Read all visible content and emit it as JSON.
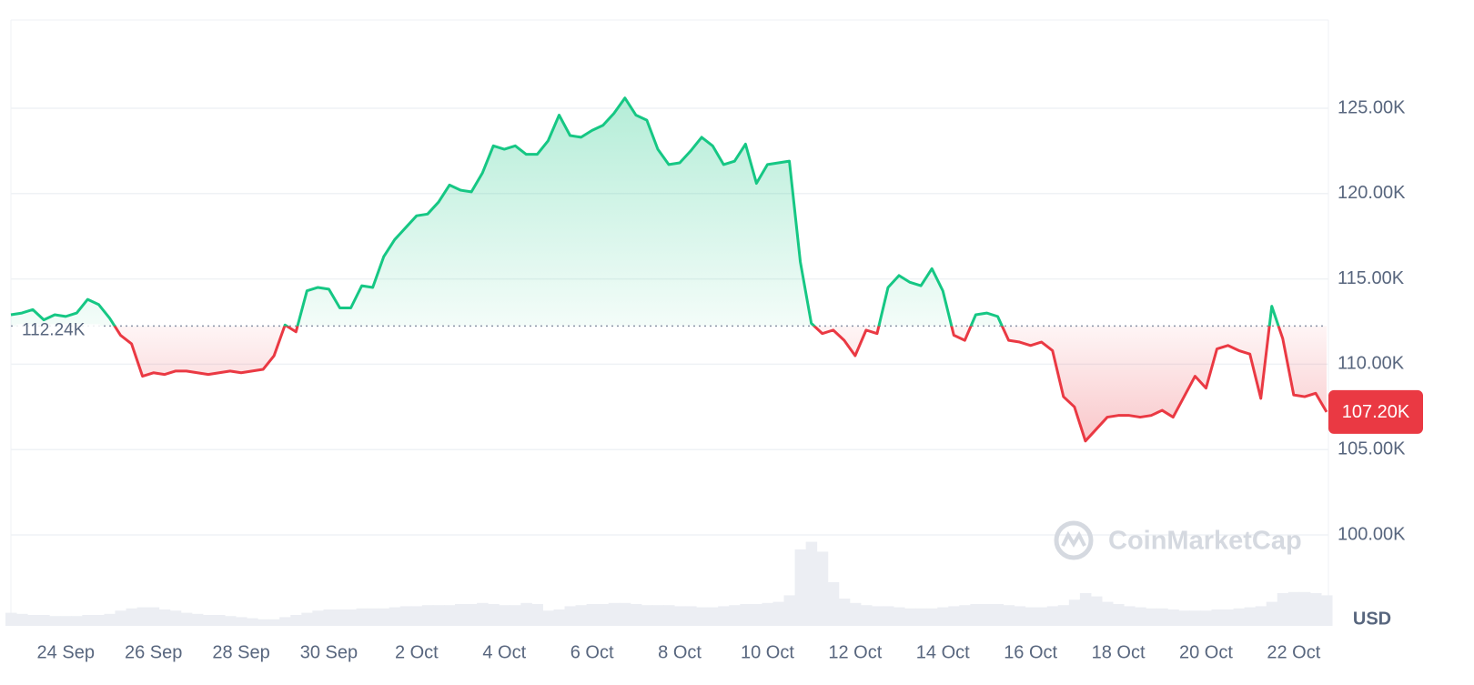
{
  "chart_data": {
    "type": "line",
    "categories": [
      null,
      null,
      null,
      null,
      null,
      "24 Sep",
      null,
      null,
      null,
      null,
      null,
      null,
      null,
      "26 Sep",
      null,
      null,
      null,
      null,
      null,
      null,
      null,
      "28 Sep",
      null,
      null,
      null,
      null,
      null,
      null,
      null,
      "30 Sep",
      null,
      null,
      null,
      null,
      null,
      null,
      null,
      "2 Oct",
      null,
      null,
      null,
      null,
      null,
      null,
      null,
      "4 Oct",
      null,
      null,
      null,
      null,
      null,
      null,
      null,
      "6 Oct",
      null,
      null,
      null,
      null,
      null,
      null,
      null,
      "8 Oct",
      null,
      null,
      null,
      null,
      null,
      null,
      null,
      "10 Oct",
      null,
      null,
      null,
      null,
      null,
      null,
      null,
      "12 Oct",
      null,
      null,
      null,
      null,
      null,
      null,
      null,
      "14 Oct",
      null,
      null,
      null,
      null,
      null,
      null,
      null,
      "16 Oct",
      null,
      null,
      null,
      null,
      null,
      null,
      null,
      "18 Oct",
      null,
      null,
      null,
      null,
      null,
      null,
      null,
      "20 Oct",
      null,
      null,
      null,
      null,
      null,
      null,
      null,
      "22 Oct",
      null,
      null,
      null
    ],
    "values": [
      112.9,
      113.0,
      113.2,
      112.6,
      112.9,
      112.8,
      113.0,
      113.8,
      113.5,
      112.7,
      111.7,
      111.2,
      109.3,
      109.5,
      109.4,
      109.6,
      109.6,
      109.5,
      109.4,
      109.5,
      109.6,
      109.5,
      109.6,
      109.7,
      110.5,
      112.3,
      111.9,
      114.3,
      114.5,
      114.4,
      113.3,
      113.3,
      114.6,
      114.5,
      116.3,
      117.3,
      118.0,
      118.7,
      118.8,
      119.5,
      120.5,
      120.2,
      120.1,
      121.2,
      122.8,
      122.6,
      122.8,
      122.3,
      122.3,
      123.1,
      124.6,
      123.4,
      123.3,
      123.7,
      124.0,
      124.7,
      125.6,
      124.6,
      124.3,
      122.6,
      121.7,
      121.8,
      122.5,
      123.3,
      122.8,
      121.7,
      121.9,
      122.9,
      120.6,
      121.7,
      121.8,
      121.9,
      116.0,
      112.4,
      111.8,
      112.0,
      111.4,
      110.5,
      112.0,
      111.8,
      114.5,
      115.2,
      114.8,
      114.6,
      115.6,
      114.3,
      111.7,
      111.4,
      112.9,
      113.0,
      112.8,
      111.4,
      111.3,
      111.1,
      111.3,
      110.8,
      108.1,
      107.5,
      105.5,
      106.2,
      106.9,
      107.0,
      107.0,
      106.9,
      107.0,
      107.3,
      106.9,
      108.1,
      109.3,
      108.6,
      110.9,
      111.1,
      110.8,
      110.6,
      108.0,
      113.4,
      111.5,
      108.2,
      108.1,
      108.3,
      107.2
    ],
    "volume": [
      12,
      11,
      10,
      10,
      9,
      9,
      9,
      10,
      10,
      11,
      14,
      16,
      17,
      17,
      15,
      14,
      12,
      11,
      10,
      10,
      9,
      8,
      7,
      6,
      6,
      8,
      10,
      12,
      14,
      15,
      15,
      15,
      16,
      16,
      16,
      17,
      18,
      18,
      19,
      19,
      19,
      20,
      20,
      21,
      20,
      19,
      19,
      21,
      20,
      14,
      15,
      18,
      19,
      20,
      20,
      21,
      21,
      20,
      19,
      19,
      19,
      18,
      18,
      17,
      17,
      18,
      19,
      20,
      20,
      21,
      22,
      28,
      70,
      77,
      68,
      40,
      25,
      21,
      19,
      18,
      18,
      17,
      16,
      16,
      16,
      17,
      18,
      19,
      20,
      20,
      20,
      19,
      18,
      17,
      17,
      18,
      19,
      24,
      30,
      27,
      22,
      20,
      18,
      17,
      16,
      16,
      15,
      14,
      14,
      14,
      15,
      15,
      16,
      17,
      18,
      22,
      30,
      31,
      31,
      30,
      28
    ],
    "y2lim": [
      0,
      100
    ],
    "ylim": [
      94.67,
      130.17
    ],
    "yticks": [
      {
        "value": 100,
        "label": "100.00K"
      },
      {
        "value": 105,
        "label": "105.00K"
      },
      {
        "value": 110,
        "label": "110.00K"
      },
      {
        "value": 115,
        "label": "115.00K"
      },
      {
        "value": 120,
        "label": "120.00K"
      },
      {
        "value": 125,
        "label": "125.00K"
      }
    ],
    "reference": {
      "value": 112.24,
      "label": "112.24K"
    },
    "current_price": {
      "value": 107.2,
      "label": "107.20K"
    },
    "currency": "USD",
    "watermark": "CoinMarketCap",
    "color_up": "#16c784",
    "color_down": "#ea3943",
    "volume_color": "#eceef3",
    "grid": true
  }
}
